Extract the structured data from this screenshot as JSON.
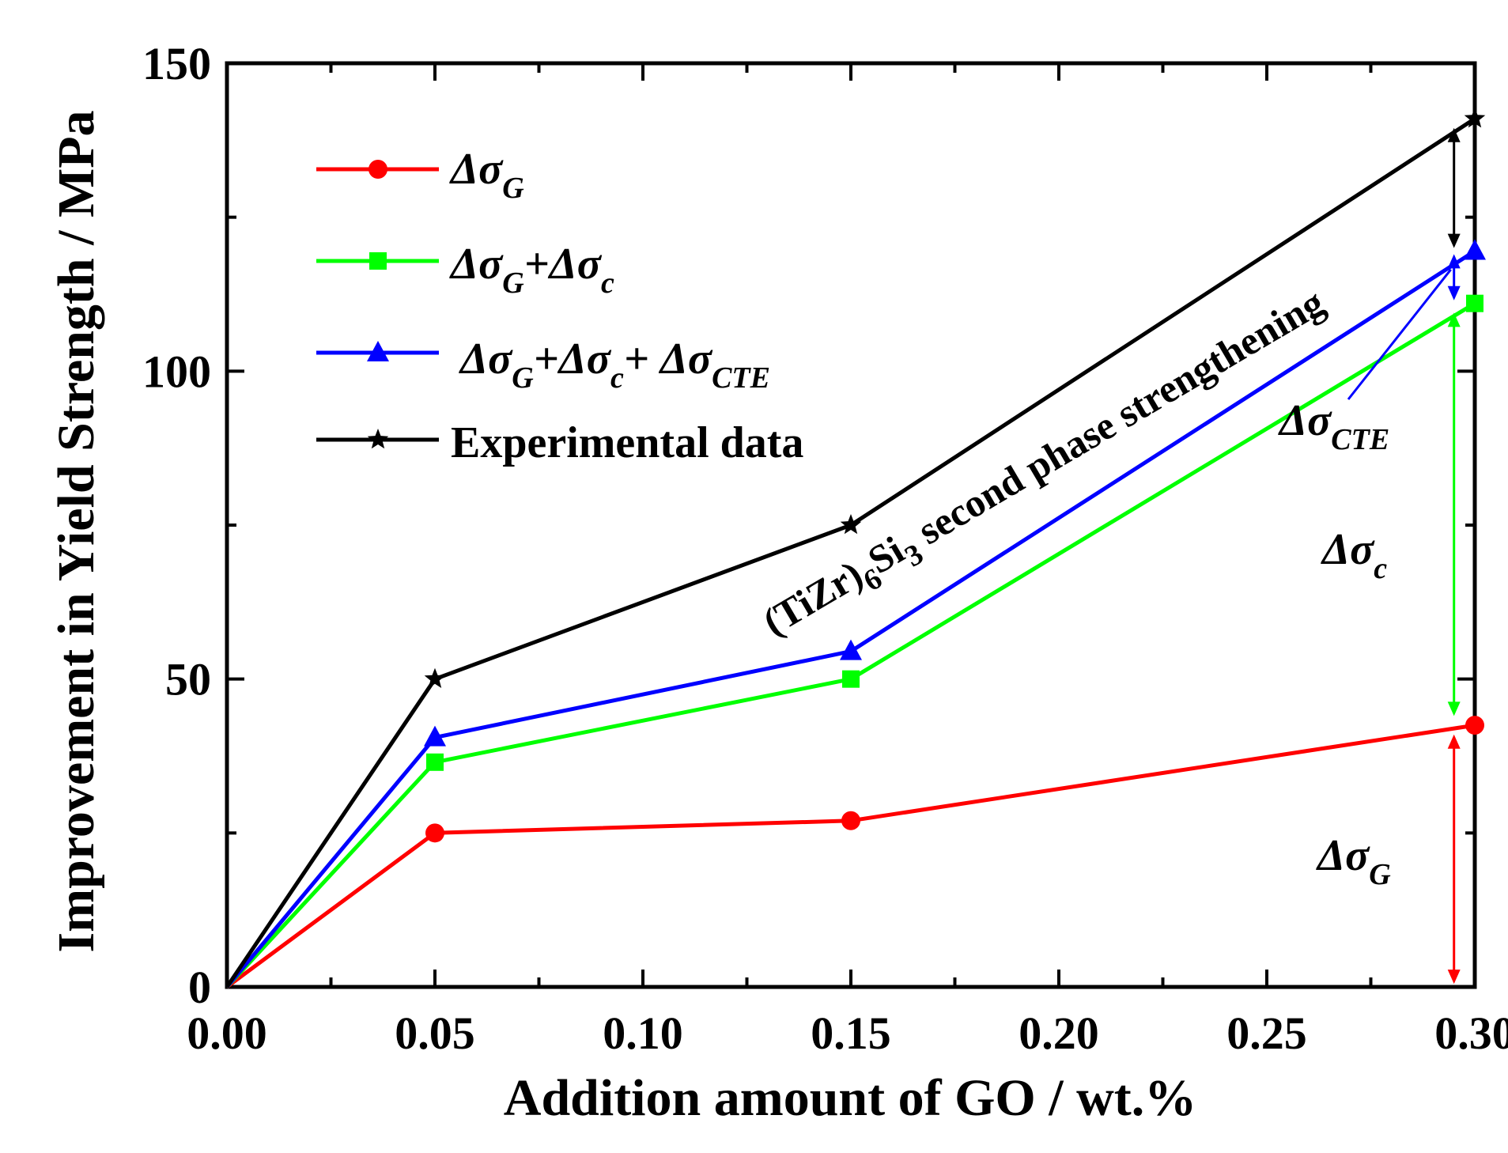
{
  "chart_data": {
    "type": "line",
    "title": "",
    "xlabel": "Addition amount of GO / wt.%",
    "ylabel": "Improvement in Yield Strength / MPa",
    "xlim": [
      0,
      0.3
    ],
    "ylim": [
      0,
      150
    ],
    "xticks": [
      "0.00",
      "0.05",
      "0.10",
      "0.15",
      "0.20",
      "0.25",
      "0.30"
    ],
    "yticks": [
      "0",
      "50",
      "100",
      "150"
    ],
    "x": [
      0,
      0.05,
      0.15,
      0.3
    ],
    "series": [
      {
        "name": "Δσ_G",
        "color": "#ff0000",
        "marker": "circle",
        "values": [
          0,
          25,
          27,
          42.5
        ]
      },
      {
        "name": "Δσ_G+Δσ_c",
        "color": "#00ff00",
        "marker": "square",
        "values": [
          0,
          36.5,
          50,
          111
        ]
      },
      {
        "name": "Δσ_G+Δσ_c+ Δσ_CTE",
        "color": "#0000ff",
        "marker": "triangle",
        "values": [
          0,
          40.5,
          54.5,
          119.5
        ]
      },
      {
        "name": "Experimental data",
        "color": "#000000",
        "marker": "star",
        "values": [
          0,
          50,
          75,
          141
        ]
      }
    ],
    "legend": {
      "position": "top-left",
      "entries": [
        {
          "main": "Δσ",
          "sub": "G",
          "rest": ""
        },
        {
          "main": "Δσ",
          "sub": "G",
          "rest": "+Δσ",
          "sub2": "c"
        },
        {
          "main": "Δσ",
          "sub": "G",
          "rest": "+Δσ",
          "sub2": "c",
          "rest2": "+ Δσ",
          "sub3": "CTE"
        },
        {
          "main": "Experimental data"
        }
      ]
    },
    "annotations": {
      "diagonal": {
        "prefix": "(TiZr)",
        "sub1": "6",
        "mid": "Si",
        "sub2": "3",
        "suffix": " second phase strengthening"
      },
      "cte_label": {
        "main": "Δσ",
        "sub": "CTE"
      },
      "c_label": {
        "main": "Δσ",
        "sub": "c"
      },
      "g_label": {
        "main": "Δσ",
        "sub": "G"
      }
    }
  }
}
